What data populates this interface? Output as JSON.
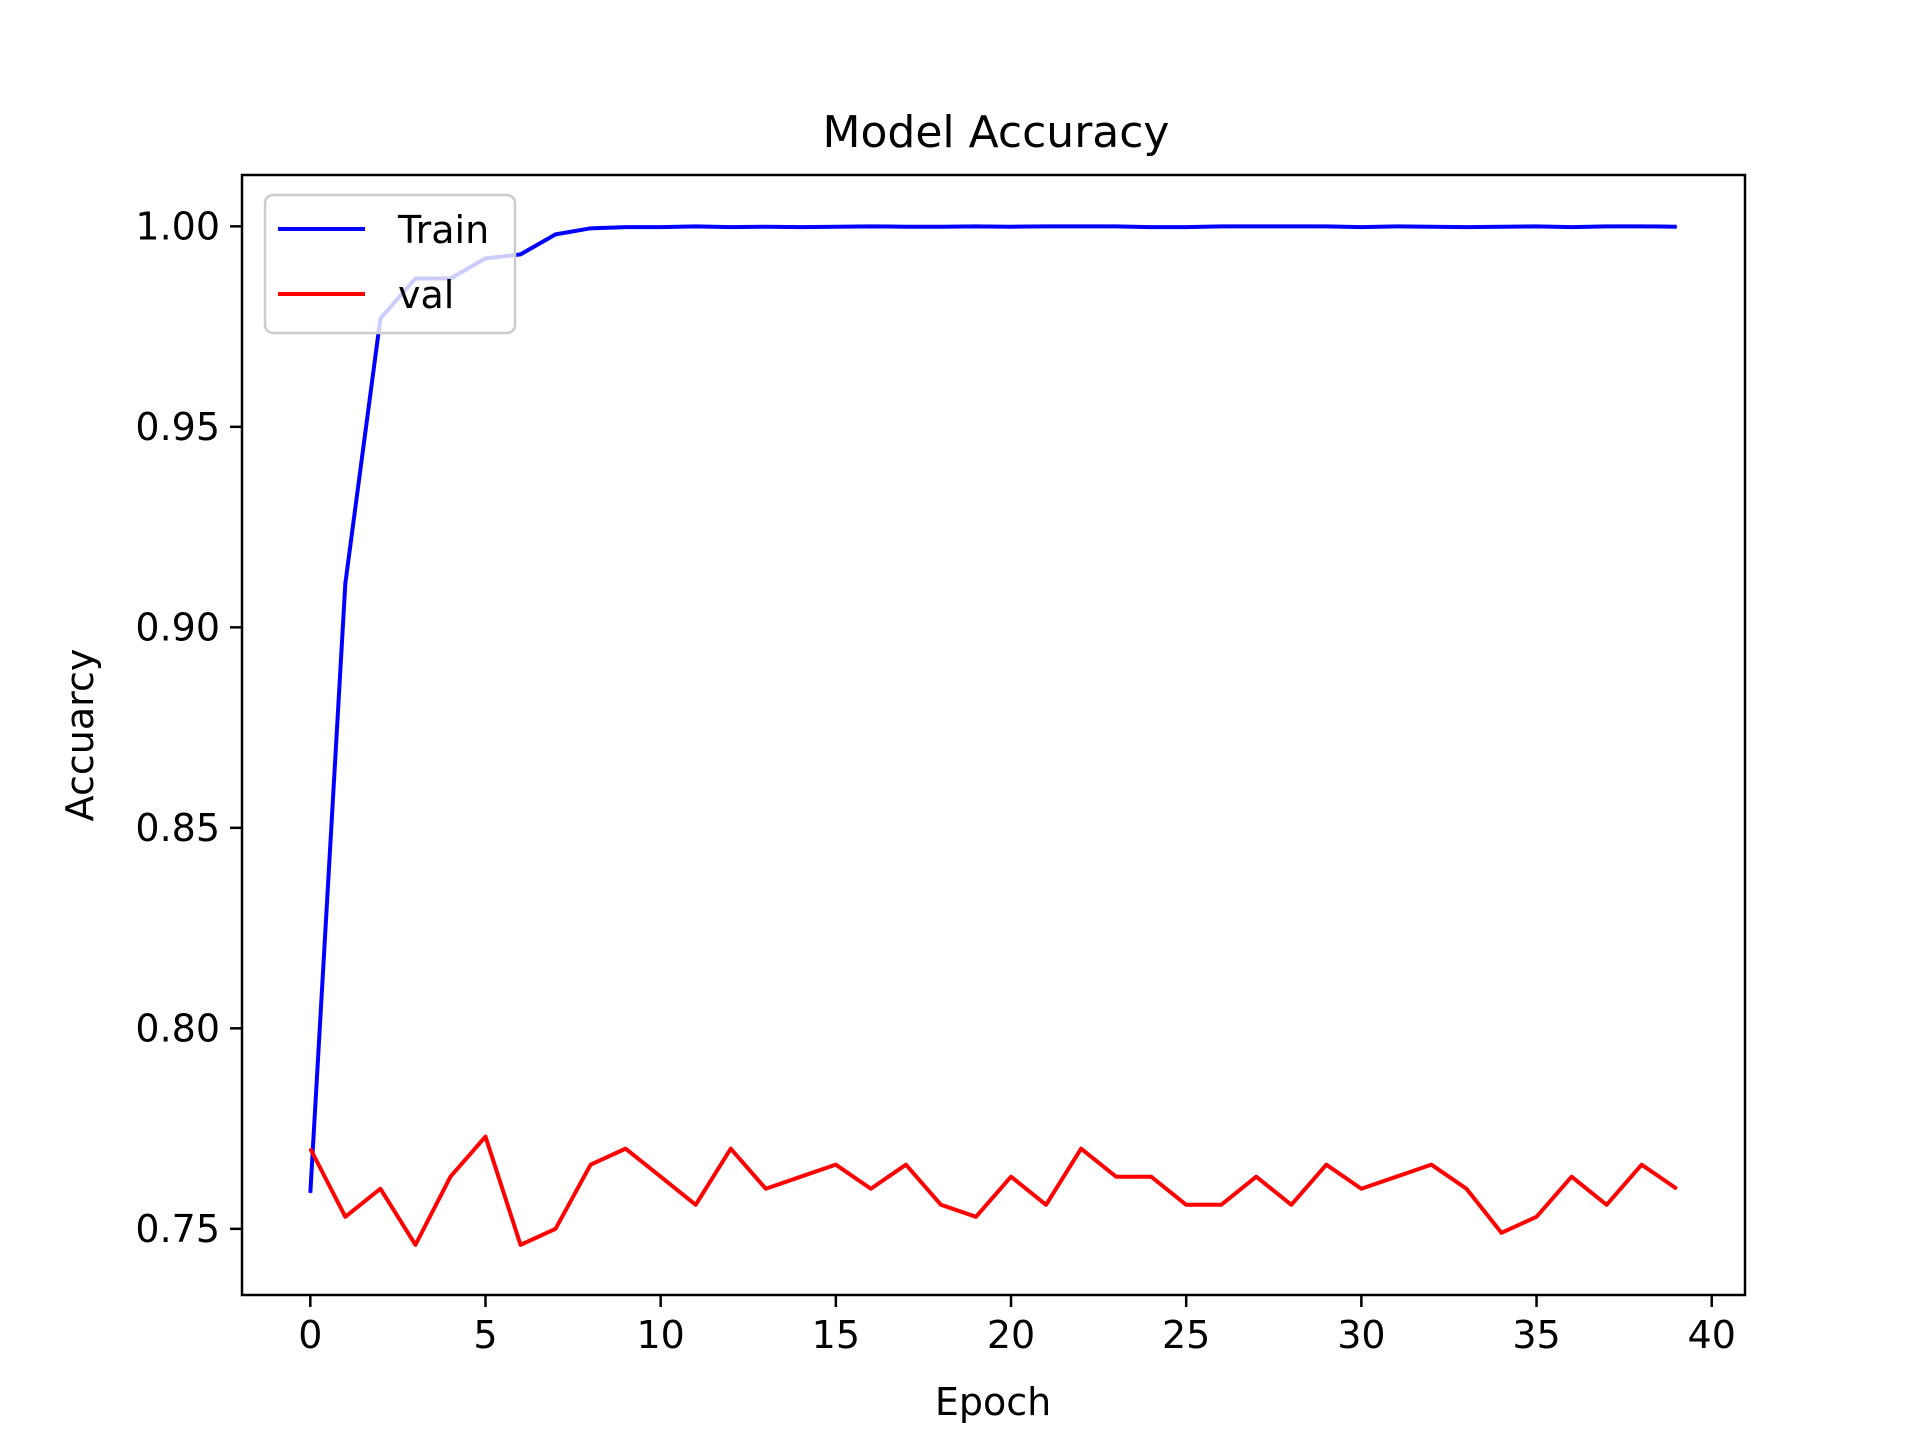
{
  "chart_data": {
    "type": "line",
    "title": "Model Accuracy",
    "xlabel": "Epoch",
    "ylabel": "Accuarcy",
    "xlim": [
      -1.95,
      40.95
    ],
    "ylim": [
      0.7335,
      1.0128
    ],
    "x_ticks": [
      0,
      5,
      10,
      15,
      20,
      25,
      30,
      35,
      40
    ],
    "y_ticks": [
      0.75,
      0.8,
      0.85,
      0.9,
      0.95,
      1.0
    ],
    "x_tick_labels": [
      "0",
      "5",
      "10",
      "15",
      "20",
      "25",
      "30",
      "35",
      "40"
    ],
    "y_tick_labels": [
      "0.75",
      "0.80",
      "0.85",
      "0.90",
      "0.95",
      "1.00"
    ],
    "grid": false,
    "legend_position": "top-left",
    "x": [
      0,
      1,
      2,
      3,
      4,
      5,
      6,
      7,
      8,
      9,
      10,
      11,
      12,
      13,
      14,
      15,
      16,
      17,
      18,
      19,
      20,
      21,
      22,
      23,
      24,
      25,
      26,
      27,
      28,
      29,
      30,
      31,
      32,
      33,
      34,
      35,
      36,
      37,
      38,
      39
    ],
    "series": [
      {
        "name": "Train",
        "color": "#0000ff",
        "values": [
          0.759,
          0.911,
          0.977,
          0.987,
          0.987,
          0.992,
          0.993,
          0.998,
          0.9995,
          0.9998,
          0.9998,
          1.0,
          0.9998,
          0.9999,
          0.9998,
          0.9999,
          1.0,
          0.9999,
          0.9999,
          1.0,
          0.9999,
          1.0,
          1.0,
          1.0,
          0.9998,
          0.9998,
          1.0,
          1.0,
          1.0,
          1.0,
          0.9998,
          1.0,
          0.9999,
          0.9998,
          0.9999,
          1.0,
          0.9998,
          1.0,
          1.0,
          0.9999
        ]
      },
      {
        "name": "val",
        "color": "#ff0000",
        "values": [
          0.77,
          0.753,
          0.76,
          0.746,
          0.763,
          0.773,
          0.746,
          0.75,
          0.766,
          0.77,
          0.763,
          0.756,
          0.77,
          0.76,
          0.763,
          0.766,
          0.76,
          0.766,
          0.756,
          0.753,
          0.763,
          0.756,
          0.77,
          0.763,
          0.763,
          0.756,
          0.756,
          0.763,
          0.756,
          0.766,
          0.76,
          0.763,
          0.766,
          0.76,
          0.749,
          0.753,
          0.763,
          0.756,
          0.766,
          0.76
        ]
      }
    ]
  }
}
